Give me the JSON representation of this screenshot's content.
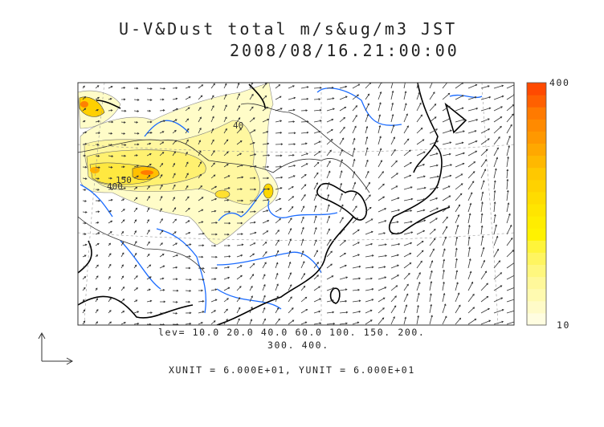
{
  "title": {
    "line1": "U-V&Dust total m/s&ug/m3 JST",
    "line2": "2008/08/16.21:00:00"
  },
  "colorbar": {
    "max_label": "400",
    "min_label": "10",
    "colors": [
      "#fffde0",
      "#fffbc8",
      "#fffab0",
      "#fff89a",
      "#fff77e",
      "#fff560",
      "#fff43a",
      "#fff200",
      "#ffed00",
      "#ffe500",
      "#ffdc00",
      "#ffd200",
      "#ffc800",
      "#ffb800",
      "#ffa800",
      "#ff9800",
      "#ff8a00",
      "#ff7a00",
      "#ff6000",
      "#ff4a00"
    ]
  },
  "map": {
    "contour_labels": [
      "40",
      "150",
      "400"
    ],
    "colors": {
      "coast": "#000000",
      "rivers": "#1a6bff",
      "borders": "#222222",
      "vectors": "#333333"
    }
  },
  "levels": {
    "line1": "lev= 10.0 20.0 40.0 60.0 100. 150. 200.",
    "line2": "300. 400."
  },
  "units": "XUNIT = 6.000E+01, YUNIT = 6.000E+01"
}
